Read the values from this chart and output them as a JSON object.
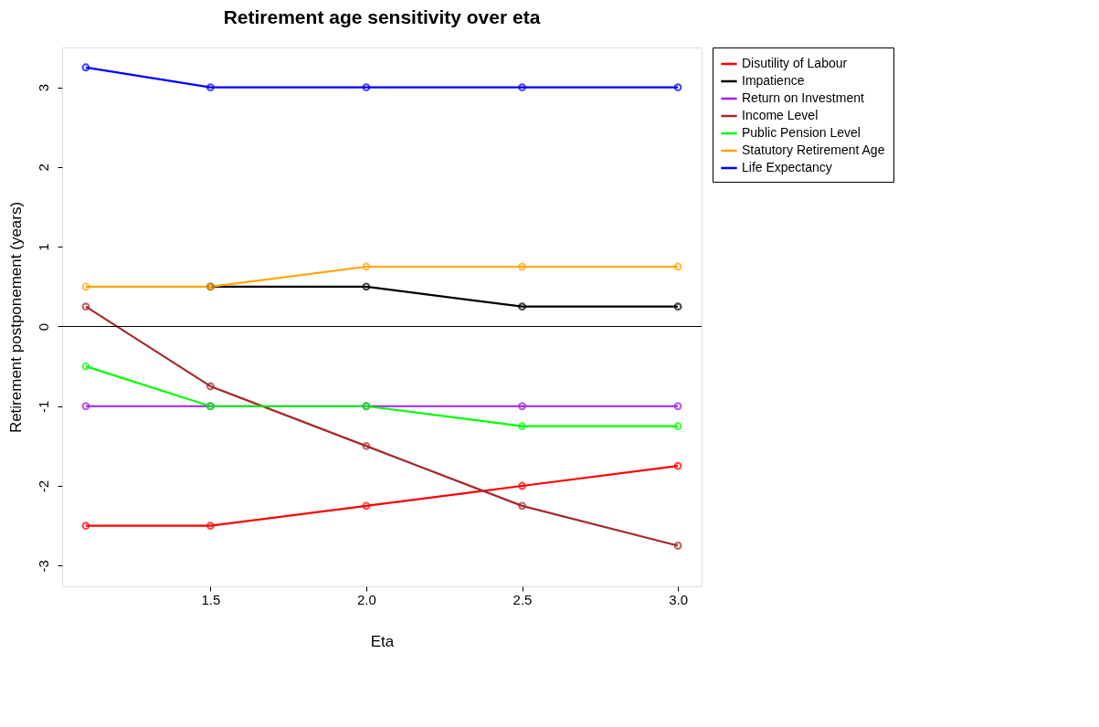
{
  "chart_data": {
    "type": "line",
    "title": "Retirement age sensitivity over eta",
    "xlabel": "Eta",
    "ylabel": "Retirement postponement (years)",
    "x": [
      1.1,
      1.5,
      2.0,
      2.5,
      3.0
    ],
    "series": [
      {
        "name": "Disutility of Labour",
        "color": "#ff0000",
        "values": [
          -2.5,
          -2.5,
          -2.25,
          -2.0,
          -1.75
        ]
      },
      {
        "name": "Impatience",
        "color": "#000000",
        "values": [
          null,
          0.5,
          0.5,
          0.25,
          0.25
        ]
      },
      {
        "name": "Return on Investment",
        "color": "#a020f0",
        "values": [
          -1.0,
          -1.0,
          -1.0,
          -1.0,
          -1.0
        ]
      },
      {
        "name": "Income Level",
        "color": "#a52a2a",
        "values": [
          0.25,
          -0.75,
          -1.5,
          -2.25,
          -2.75
        ]
      },
      {
        "name": "Public Pension Level",
        "color": "#00ff00",
        "values": [
          -0.5,
          -1.0,
          -1.0,
          -1.25,
          -1.25
        ]
      },
      {
        "name": "Statutory Retirement Age",
        "color": "#ffa500",
        "values": [
          0.5,
          0.5,
          0.75,
          0.75,
          0.75
        ]
      },
      {
        "name": "Life Expectancy",
        "color": "#0000ff",
        "values": [
          3.25,
          3.0,
          3.0,
          3.0,
          3.0
        ]
      }
    ],
    "xlim": [
      1.024,
      3.076
    ],
    "ylim": [
      -3.26,
      3.5
    ],
    "xticks": [
      1.5,
      {
        "value": 2.0,
        "label": "2.0"
      },
      2.5,
      {
        "value": 3.0,
        "label": "3.0"
      }
    ],
    "yticks": [
      -3,
      -2,
      -1,
      0,
      1,
      2,
      3
    ],
    "ref_lines": [
      {
        "axis": "y",
        "value": 0,
        "label": null,
        "color": "#000000"
      }
    ],
    "marker": "circle",
    "line_style": "solid",
    "grid": false,
    "legend": "top right"
  }
}
